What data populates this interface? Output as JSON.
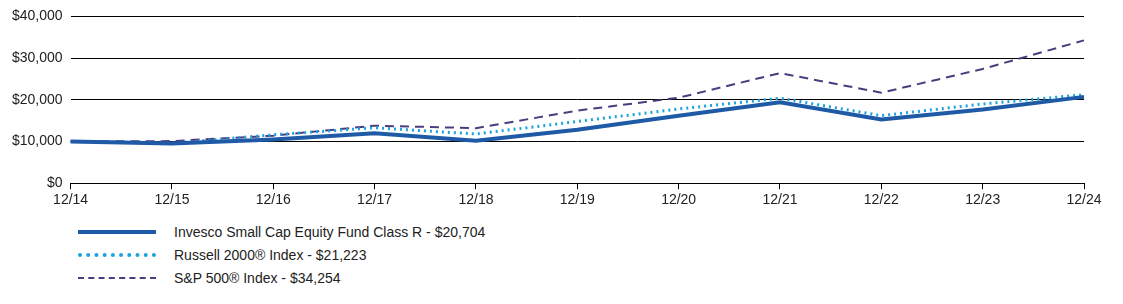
{
  "chart_data": {
    "type": "line",
    "categories": [
      "12/14",
      "12/15",
      "12/16",
      "12/17",
      "12/18",
      "12/19",
      "12/20",
      "12/21",
      "12/22",
      "12/23",
      "12/24"
    ],
    "series": [
      {
        "name": "Invesco Small Cap Equity Fund Class R - $20,704",
        "color": "#1f5aa6",
        "line_style": "solid",
        "values": [
          10000,
          9500,
          10500,
          12000,
          10200,
          12800,
          16200,
          19400,
          15300,
          17700,
          20704
        ]
      },
      {
        "name": "Russell 2000® Index - $21,223",
        "color": "#1ba3e0",
        "line_style": "dotted",
        "values": [
          10000,
          9600,
          11600,
          13300,
          11800,
          14800,
          17800,
          20400,
          16200,
          19000,
          21223
        ]
      },
      {
        "name": "S&P 500® Index - $34,254",
        "color": "#4e3b7e",
        "line_style": "dashed",
        "values": [
          10000,
          10100,
          11400,
          13800,
          13200,
          17400,
          20500,
          26400,
          21700,
          27400,
          34254
        ]
      }
    ],
    "ylim": [
      0,
      40000
    ],
    "yticks": [
      {
        "value": 0,
        "label": "$0"
      },
      {
        "value": 10000,
        "label": "$10,000"
      },
      {
        "value": 20000,
        "label": "$20,000"
      },
      {
        "value": 30000,
        "label": "$30,000"
      },
      {
        "value": 40000,
        "label": "$40,000"
      }
    ],
    "grid": true,
    "legend": "bottom-left"
  }
}
